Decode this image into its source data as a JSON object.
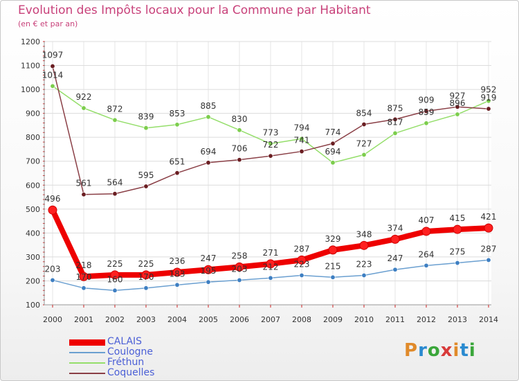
{
  "header": {
    "title": "Evolution des Impôts locaux pour la Commune par Habitant",
    "subtitle": "(en € et par an)"
  },
  "logo": {
    "text": "Proxiti",
    "colors": [
      "#e08a2a",
      "#2a8ad0",
      "#3aa63a",
      "#d83a3a"
    ]
  },
  "chart_data": {
    "type": "line",
    "title": "Evolution des Impôts locaux pour la Commune par Habitant",
    "subtitle": "(en € et par an)",
    "x": [
      "2000",
      "2001",
      "2002",
      "2003",
      "2004",
      "2005",
      "2006",
      "2007",
      "2008",
      "2009",
      "2010",
      "2011",
      "2012",
      "2013",
      "2014"
    ],
    "yticks": [
      100,
      200,
      300,
      400,
      500,
      600,
      700,
      800,
      900,
      1000,
      1100,
      1200
    ],
    "ylim": [
      100,
      1200
    ],
    "grid": true,
    "legend_position": "bottom-left",
    "series": [
      {
        "name": "CALAIS",
        "color": "#ee0000",
        "point_color": "#ff2020",
        "emphasis": "thick",
        "values": [
          496,
          218,
          225,
          225,
          236,
          247,
          258,
          271,
          287,
          329,
          348,
          374,
          407,
          415,
          421
        ]
      },
      {
        "name": "Coulogne",
        "color": "#6a9fd0",
        "point_color": "#3e7fc2",
        "emphasis": "thin",
        "values": [
          203,
          170,
          160,
          170,
          183,
          195,
          203,
          212,
          223,
          215,
          223,
          247,
          264,
          275,
          287
        ]
      },
      {
        "name": "Fréthun",
        "color": "#94de6a",
        "point_color": "#7ccd4c",
        "emphasis": "thin",
        "values": [
          1014,
          922,
          872,
          839,
          853,
          885,
          830,
          773,
          794,
          694,
          727,
          817,
          859,
          896,
          952
        ]
      },
      {
        "name": "Coquelles",
        "color": "#8a3f46",
        "point_color": "#6a1e22",
        "emphasis": "thin",
        "values": [
          1097,
          561,
          564,
          595,
          651,
          694,
          706,
          722,
          741,
          774,
          854,
          875,
          909,
          927,
          919
        ]
      }
    ]
  }
}
